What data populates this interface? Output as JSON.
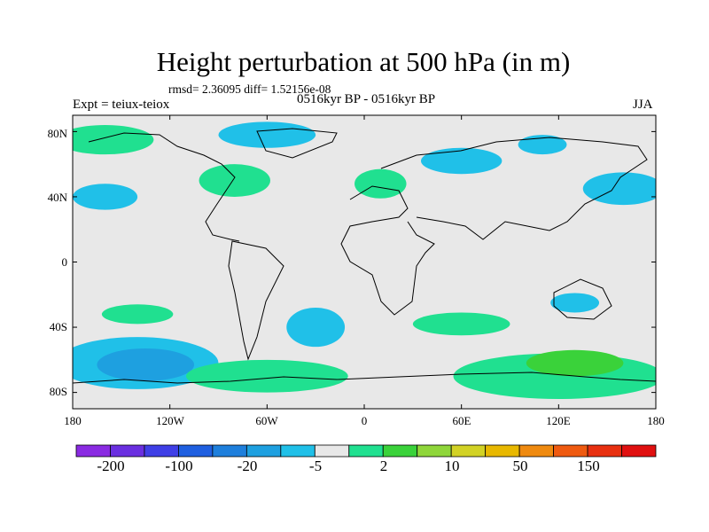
{
  "title": "Height perturbation at 500 hPa (in m)",
  "stats": "rmsd= 2.36095 diff= 1.52156e-08",
  "period": "0516kyr BP - 0516kyr BP",
  "expt": "Expt = teiux-teiox",
  "season": "JJA",
  "lat_ticks": [
    "80N",
    "40N",
    "0",
    "40S",
    "80S"
  ],
  "lon_ticks": [
    "180",
    "120W",
    "60W",
    "0",
    "60E",
    "120E",
    "180"
  ],
  "colorbar": {
    "colors": [
      "#8a2be2",
      "#6a2fe0",
      "#3f3fe6",
      "#1f5fe0",
      "#1e7fdc",
      "#1ea0e0",
      "#20c0e8",
      "#e8e8e8",
      "#20e090",
      "#3ad23a",
      "#8fd63a",
      "#d2d225",
      "#e8b800",
      "#ef8a10",
      "#ef5a10",
      "#e83010",
      "#e01010"
    ],
    "labels": [
      "-200",
      "-100",
      "-20",
      "-5",
      "2",
      "10",
      "50",
      "150"
    ]
  },
  "map": {
    "background_color": "#e8e8e8",
    "anomalies": [
      {
        "lon": -160,
        "lat": 75,
        "rx": 30,
        "ry": 9,
        "level": "#20e090"
      },
      {
        "lon": -160,
        "lat": 40,
        "rx": 20,
        "ry": 8,
        "level": "#20c0e8"
      },
      {
        "lon": -140,
        "lat": -32,
        "rx": 22,
        "ry": 6,
        "level": "#20e090"
      },
      {
        "lon": -140,
        "lat": -62,
        "rx": 50,
        "ry": 16,
        "level": "#20c0e8"
      },
      {
        "lon": -135,
        "lat": -63,
        "rx": 30,
        "ry": 10,
        "level": "#1ea0e0"
      },
      {
        "lon": -30,
        "lat": -40,
        "rx": 18,
        "ry": 12,
        "level": "#20c0e8"
      },
      {
        "lon": -60,
        "lat": -70,
        "rx": 50,
        "ry": 10,
        "level": "#20e090"
      },
      {
        "lon": -80,
        "lat": 50,
        "rx": 22,
        "ry": 10,
        "level": "#20e090"
      },
      {
        "lon": -60,
        "lat": 78,
        "rx": 30,
        "ry": 8,
        "level": "#20c0e8"
      },
      {
        "lon": 10,
        "lat": 48,
        "rx": 16,
        "ry": 9,
        "level": "#20e090"
      },
      {
        "lon": 60,
        "lat": 62,
        "rx": 25,
        "ry": 8,
        "level": "#20c0e8"
      },
      {
        "lon": 110,
        "lat": 72,
        "rx": 15,
        "ry": 6,
        "level": "#20c0e8"
      },
      {
        "lon": 160,
        "lat": 45,
        "rx": 25,
        "ry": 10,
        "level": "#20c0e8"
      },
      {
        "lon": 120,
        "lat": -70,
        "rx": 65,
        "ry": 14,
        "level": "#20e090"
      },
      {
        "lon": 130,
        "lat": -62,
        "rx": 30,
        "ry": 8,
        "level": "#3ad23a"
      },
      {
        "lon": 60,
        "lat": -38,
        "rx": 30,
        "ry": 7,
        "level": "#20e090"
      },
      {
        "lon": 130,
        "lat": -25,
        "rx": 15,
        "ry": 6,
        "level": "#20c0e8"
      }
    ]
  }
}
